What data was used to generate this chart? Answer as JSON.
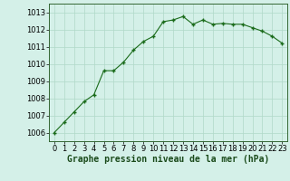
{
  "x": [
    0,
    1,
    2,
    3,
    4,
    5,
    6,
    7,
    8,
    9,
    10,
    11,
    12,
    13,
    14,
    15,
    16,
    17,
    18,
    19,
    20,
    21,
    22,
    23
  ],
  "y": [
    1006.0,
    1006.6,
    1007.2,
    1007.8,
    1008.2,
    1009.6,
    1009.6,
    1010.1,
    1010.8,
    1011.3,
    1011.6,
    1012.45,
    1012.55,
    1012.75,
    1012.3,
    1012.55,
    1012.3,
    1012.35,
    1012.3,
    1012.3,
    1012.1,
    1011.9,
    1011.6,
    1011.2
  ],
  "line_color": "#1a6b1a",
  "marker": "+",
  "bg_color": "#d4f0e8",
  "grid_color": "#b0d8c8",
  "xlabel": "Graphe pression niveau de la mer (hPa)",
  "xlabel_fontsize": 7,
  "tick_fontsize": 6,
  "ylim": [
    1005.5,
    1013.5
  ],
  "yticks": [
    1006,
    1007,
    1008,
    1009,
    1010,
    1011,
    1012,
    1013
  ],
  "xticks": [
    0,
    1,
    2,
    3,
    4,
    5,
    6,
    7,
    8,
    9,
    10,
    11,
    12,
    13,
    14,
    15,
    16,
    17,
    18,
    19,
    20,
    21,
    22,
    23
  ],
  "xlim": [
    -0.5,
    23.5
  ]
}
